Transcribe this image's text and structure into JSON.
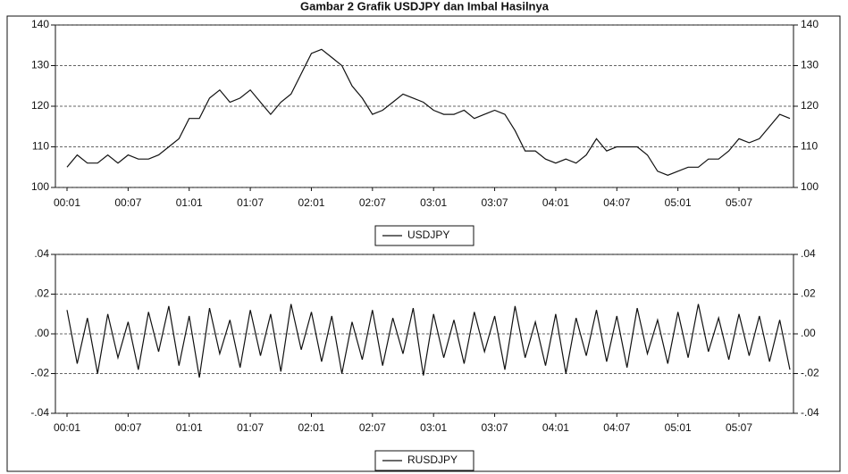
{
  "title": "Gambar 2 Grafik USDJPY dan Imbal Hasilnya",
  "chart_data": [
    {
      "type": "line",
      "categories": [
        "00:01",
        null,
        null,
        null,
        null,
        null,
        "00:07",
        null,
        null,
        null,
        null,
        null,
        "01:01",
        null,
        null,
        null,
        null,
        null,
        "01:07",
        null,
        null,
        null,
        null,
        null,
        "02:01",
        null,
        null,
        null,
        null,
        null,
        "02:07",
        null,
        null,
        null,
        null,
        null,
        "03:01",
        null,
        null,
        null,
        null,
        null,
        "03:07",
        null,
        null,
        null,
        null,
        null,
        "04:01",
        null,
        null,
        null,
        null,
        null,
        "04:07",
        null,
        null,
        null,
        null,
        null,
        "05:01",
        null,
        null,
        null,
        null,
        null,
        "05:07",
        null,
        null,
        null,
        null,
        null
      ],
      "series": [
        {
          "name": "USDJPY",
          "color": "#111111",
          "values": [
            105,
            108,
            106,
            106,
            108,
            106,
            108,
            107,
            107,
            108,
            110,
            112,
            117,
            117,
            122,
            124,
            121,
            122,
            124,
            121,
            118,
            121,
            123,
            128,
            133,
            134,
            132,
            130,
            125,
            122,
            118,
            119,
            121,
            123,
            122,
            121,
            119,
            118,
            118,
            119,
            117,
            118,
            119,
            118,
            114,
            109,
            109,
            107,
            106,
            107,
            106,
            108,
            112,
            109,
            110,
            110,
            110,
            108,
            104,
            103,
            104,
            105,
            105,
            107,
            107,
            109,
            112,
            111,
            112,
            115,
            118,
            117
          ]
        }
      ],
      "ylim": [
        100,
        140
      ],
      "yticks": [
        100,
        110,
        120,
        130,
        140
      ],
      "grid": true
    },
    {
      "type": "line",
      "categories": [
        "00:01",
        null,
        null,
        null,
        null,
        null,
        "00:07",
        null,
        null,
        null,
        null,
        null,
        "01:01",
        null,
        null,
        null,
        null,
        null,
        "01:07",
        null,
        null,
        null,
        null,
        null,
        "02:01",
        null,
        null,
        null,
        null,
        null,
        "02:07",
        null,
        null,
        null,
        null,
        null,
        "03:01",
        null,
        null,
        null,
        null,
        null,
        "03:07",
        null,
        null,
        null,
        null,
        null,
        "04:01",
        null,
        null,
        null,
        null,
        null,
        "04:07",
        null,
        null,
        null,
        null,
        null,
        "05:01",
        null,
        null,
        null,
        null,
        null,
        "05:07",
        null,
        null,
        null,
        null,
        null
      ],
      "series": [
        {
          "name": "RUSDJPY",
          "color": "#111111",
          "values": [
            0.012,
            -0.015,
            0.008,
            -0.02,
            0.01,
            -0.012,
            0.006,
            -0.018,
            0.011,
            -0.009,
            0.014,
            -0.016,
            0.009,
            -0.022,
            0.013,
            -0.01,
            0.007,
            -0.017,
            0.012,
            -0.011,
            0.01,
            -0.019,
            0.015,
            -0.008,
            0.011,
            -0.014,
            0.009,
            -0.02,
            0.006,
            -0.013,
            0.012,
            -0.016,
            0.008,
            -0.01,
            0.013,
            -0.021,
            0.01,
            -0.012,
            0.007,
            -0.015,
            0.011,
            -0.009,
            0.009,
            -0.018,
            0.014,
            -0.012,
            0.006,
            -0.016,
            0.01,
            -0.02,
            0.008,
            -0.011,
            0.012,
            -0.014,
            0.009,
            -0.017,
            0.013,
            -0.01,
            0.007,
            -0.015,
            0.011,
            -0.012,
            0.015,
            -0.009,
            0.008,
            -0.013,
            0.01,
            -0.011,
            0.009,
            -0.014,
            0.007,
            -0.018
          ]
        }
      ],
      "ylim": [
        -0.04,
        0.04
      ],
      "yticks": [
        {
          "value": -0.04,
          "label": "-.04"
        },
        {
          "value": -0.02,
          "label": "-.02"
        },
        {
          "value": 0,
          "label": ".00"
        },
        {
          "value": 0.02,
          "label": ".02"
        },
        {
          "value": 0.04,
          "label": ".04"
        }
      ],
      "grid": true
    }
  ]
}
